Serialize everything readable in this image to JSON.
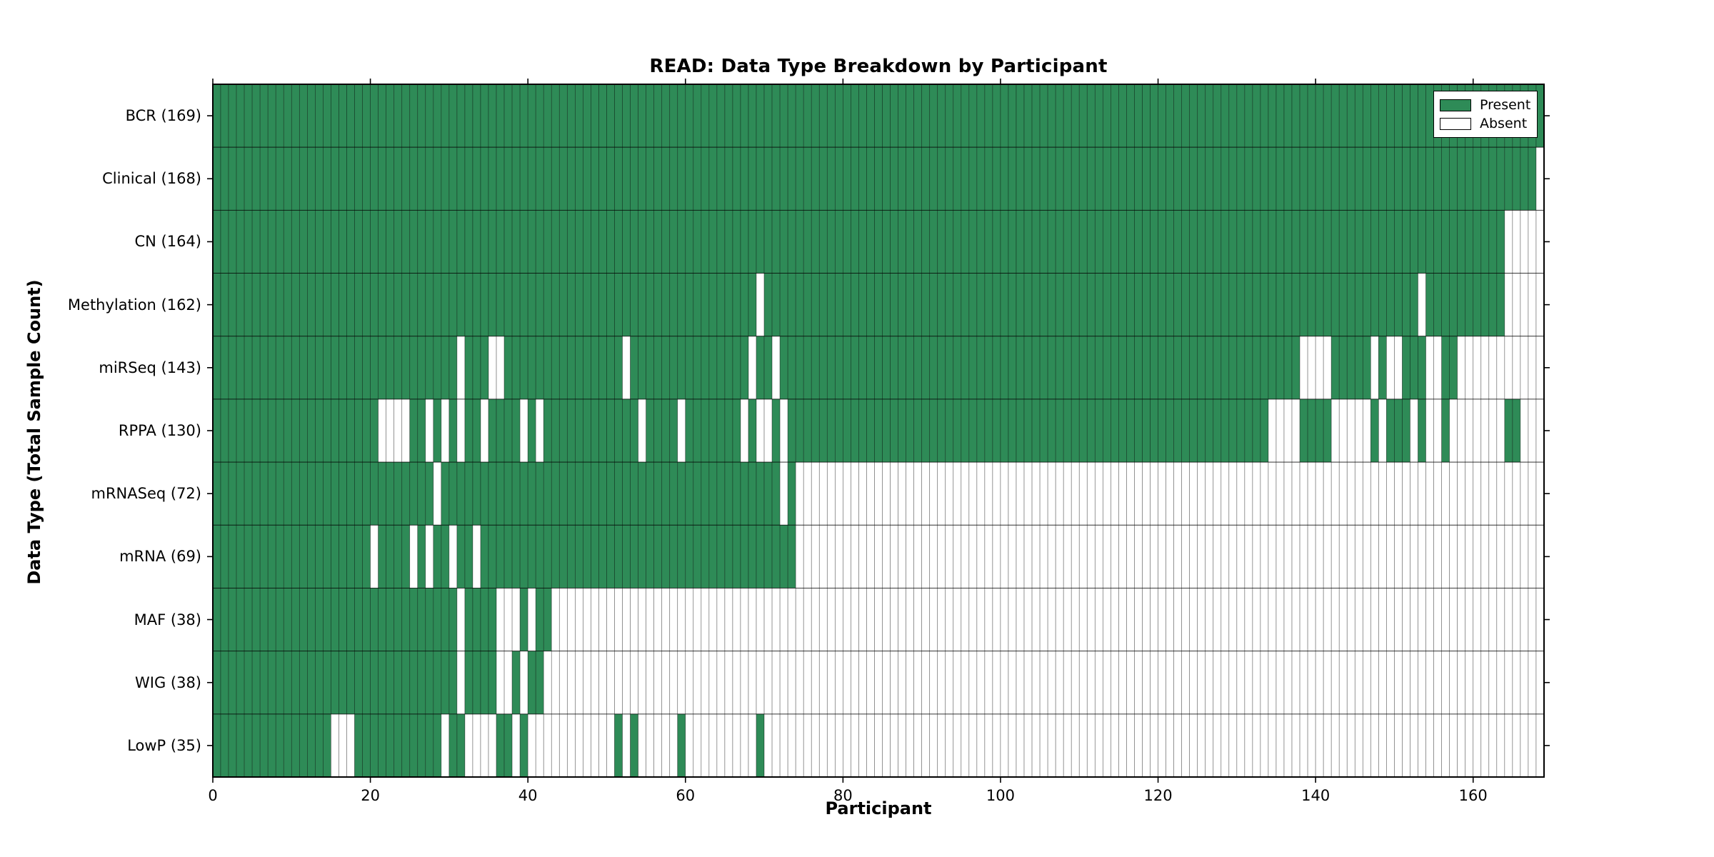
{
  "chart": {
    "title": "READ: Data Type Breakdown by Participant",
    "xlabel": "Participant",
    "ylabel": "Data Type (Total Sample Count)",
    "legend": [
      {
        "label": "Present",
        "color": "#2e8b57"
      },
      {
        "label": "Absent",
        "color": "#ffffff"
      }
    ]
  },
  "chart_data": {
    "type": "heatmap",
    "title": "READ: Data Type Breakdown by Participant",
    "xlabel": "Participant",
    "ylabel": "Data Type (Total Sample Count)",
    "legend_position": "upper right",
    "n_participants": 169,
    "x_ticks": [
      0,
      20,
      40,
      60,
      80,
      100,
      120,
      140,
      160
    ],
    "present_color": "#2e8b57",
    "absent_color": "#ffffff",
    "cell_values": {
      "present": 1,
      "absent": 0
    },
    "rows": [
      {
        "label": "BCR (169)",
        "data_type": "BCR",
        "count": 169,
        "absent_ranges": []
      },
      {
        "label": "Clinical (168)",
        "data_type": "Clinical",
        "count": 168,
        "absent_ranges": [
          [
            168,
            168
          ]
        ]
      },
      {
        "label": "CN (164)",
        "data_type": "CN",
        "count": 164,
        "absent_ranges": [
          [
            164,
            168
          ]
        ]
      },
      {
        "label": "Methylation (162)",
        "data_type": "Methylation",
        "count": 162,
        "absent_ranges": [
          [
            69,
            69
          ],
          [
            153,
            153
          ],
          [
            164,
            168
          ]
        ]
      },
      {
        "label": "miRSeq (143)",
        "data_type": "miRSeq",
        "count": 143,
        "absent_ranges": [
          [
            31,
            31
          ],
          [
            35,
            36
          ],
          [
            52,
            52
          ],
          [
            68,
            68
          ],
          [
            71,
            71
          ],
          [
            138,
            141
          ],
          [
            147,
            147
          ],
          [
            149,
            150
          ],
          [
            154,
            155
          ],
          [
            158,
            168
          ]
        ]
      },
      {
        "label": "RPPA (130)",
        "data_type": "RPPA",
        "count": 130,
        "absent_ranges": [
          [
            21,
            24
          ],
          [
            27,
            27
          ],
          [
            29,
            29
          ],
          [
            31,
            31
          ],
          [
            34,
            34
          ],
          [
            39,
            39
          ],
          [
            41,
            41
          ],
          [
            54,
            54
          ],
          [
            59,
            59
          ],
          [
            67,
            67
          ],
          [
            69,
            70
          ],
          [
            72,
            72
          ],
          [
            134,
            137
          ],
          [
            142,
            146
          ],
          [
            148,
            148
          ],
          [
            152,
            152
          ],
          [
            154,
            155
          ],
          [
            157,
            163
          ],
          [
            166,
            168
          ]
        ]
      },
      {
        "label": "mRNASeq (72)",
        "data_type": "mRNASeq",
        "count": 72,
        "absent_ranges": [
          [
            28,
            28
          ],
          [
            72,
            72
          ],
          [
            74,
            168
          ]
        ]
      },
      {
        "label": "mRNA (69)",
        "data_type": "mRNA",
        "count": 69,
        "absent_ranges": [
          [
            20,
            20
          ],
          [
            25,
            25
          ],
          [
            27,
            27
          ],
          [
            30,
            30
          ],
          [
            33,
            33
          ],
          [
            74,
            168
          ]
        ]
      },
      {
        "label": "MAF (38)",
        "data_type": "MAF",
        "count": 38,
        "absent_ranges": [
          [
            31,
            31
          ],
          [
            36,
            38
          ],
          [
            40,
            40
          ],
          [
            43,
            168
          ]
        ]
      },
      {
        "label": "WIG (38)",
        "data_type": "WIG",
        "count": 38,
        "absent_ranges": [
          [
            31,
            31
          ],
          [
            36,
            37
          ],
          [
            39,
            39
          ],
          [
            42,
            168
          ]
        ]
      },
      {
        "label": "LowP (35)",
        "data_type": "LowP",
        "count": 35,
        "absent_ranges": [
          [
            15,
            17
          ],
          [
            29,
            29
          ],
          [
            32,
            35
          ],
          [
            38,
            38
          ],
          [
            40,
            50
          ],
          [
            52,
            52
          ],
          [
            54,
            58
          ],
          [
            60,
            68
          ],
          [
            70,
            168
          ]
        ]
      }
    ]
  }
}
